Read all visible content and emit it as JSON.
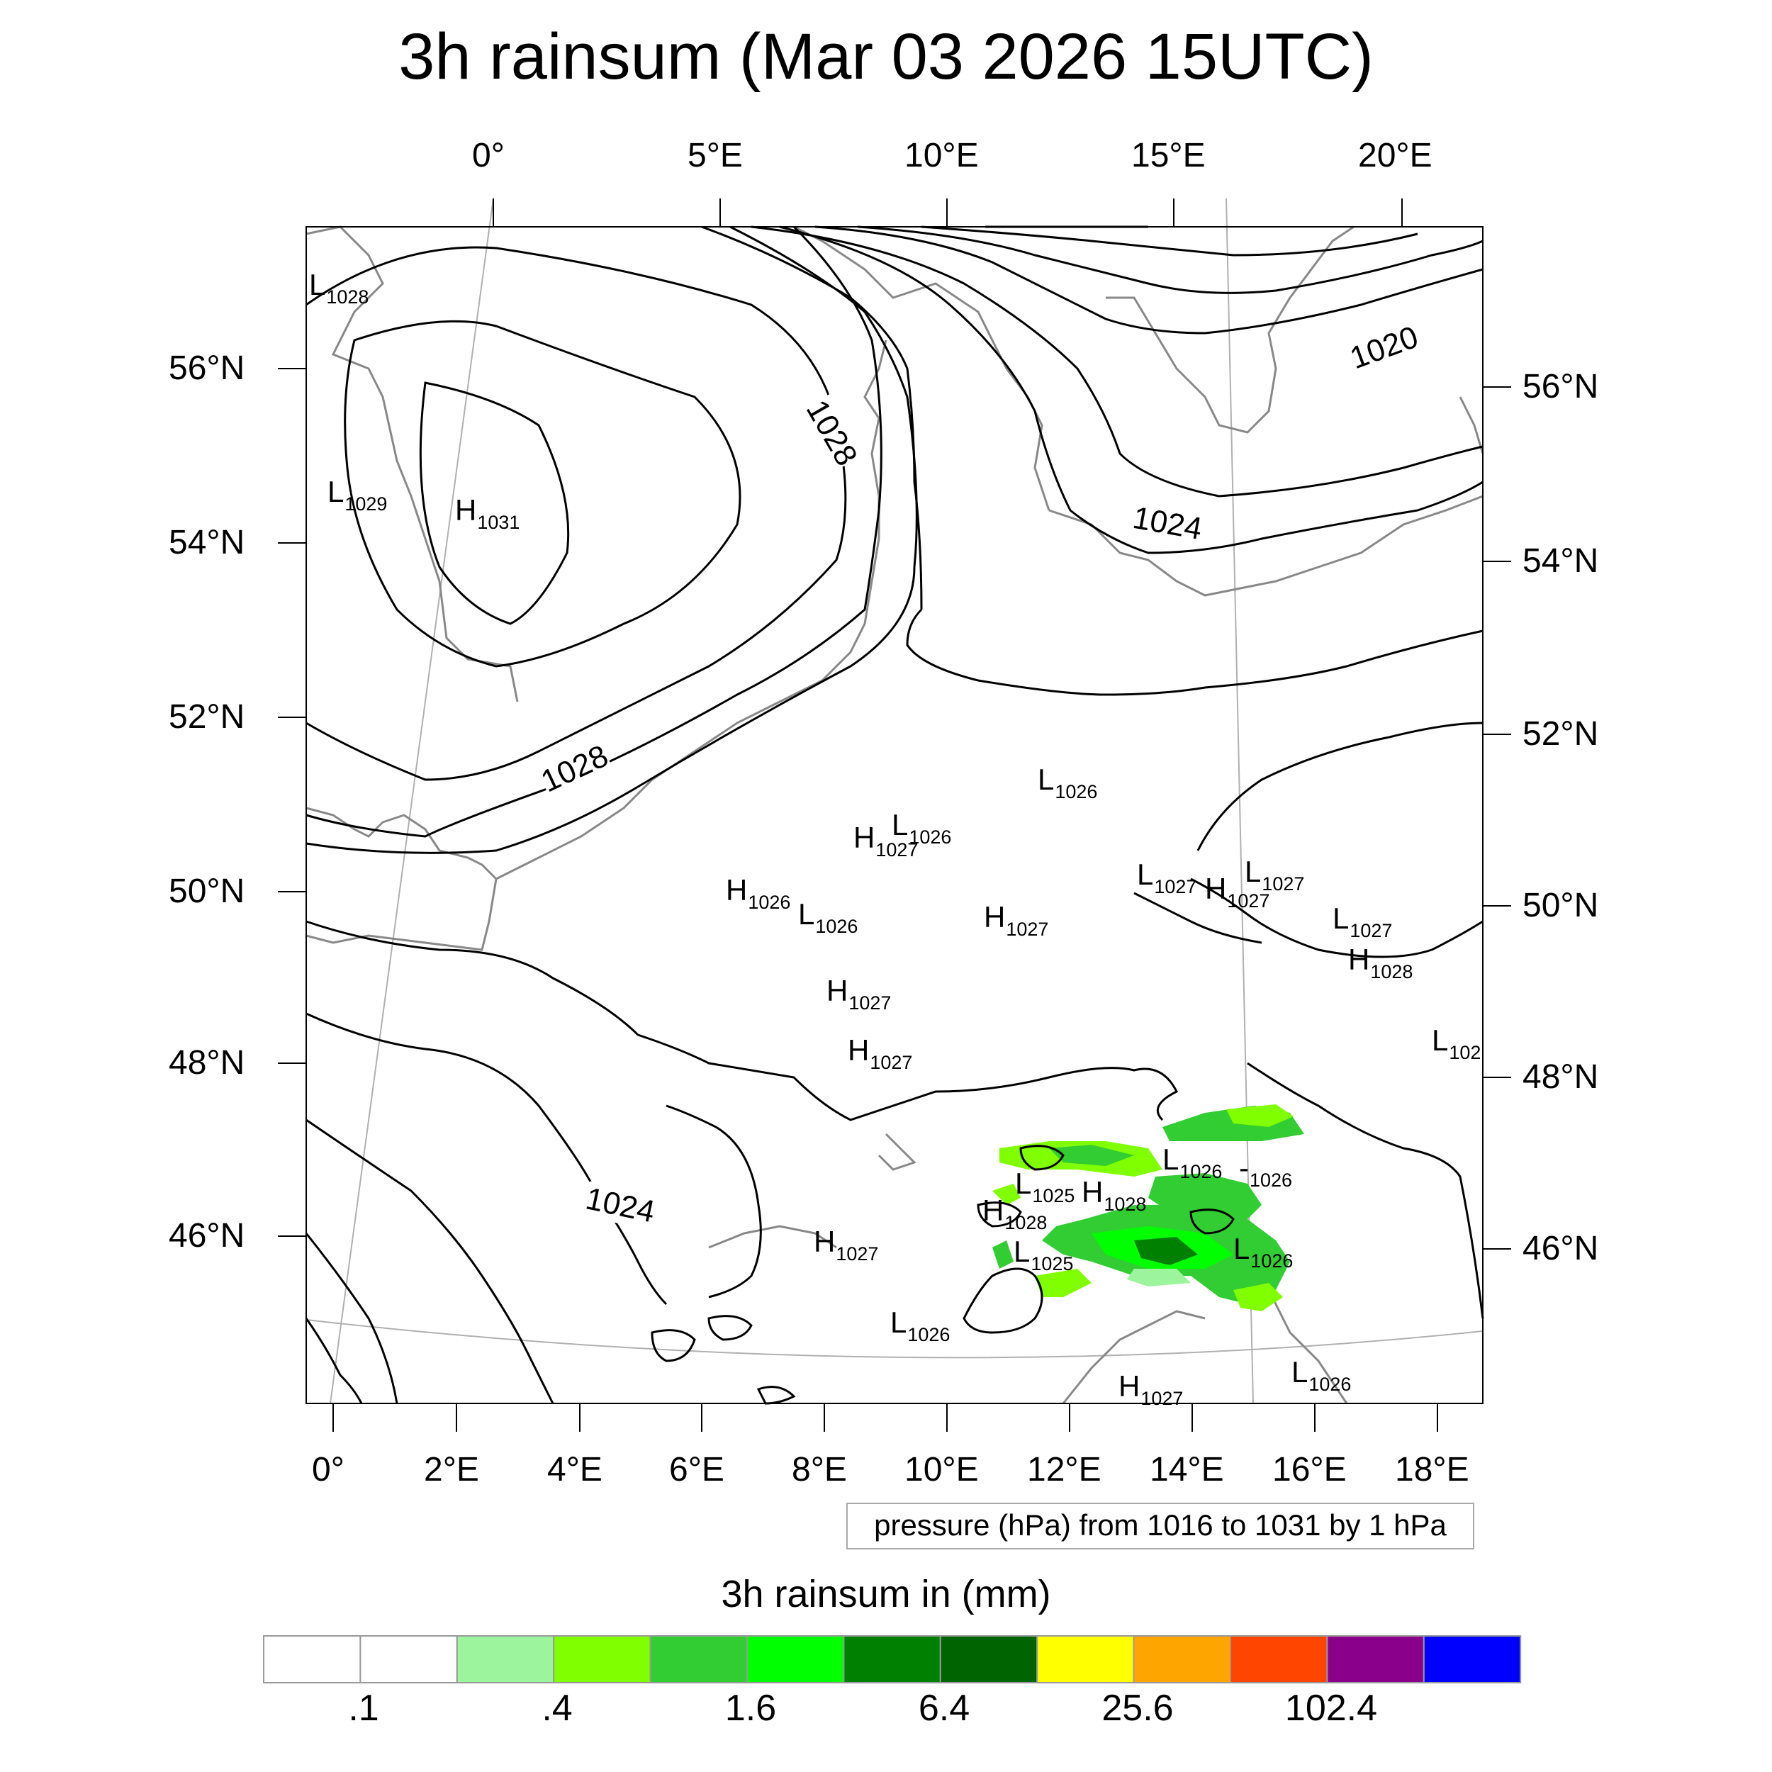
{
  "title": "3h rainsum (Mar 03 2026 15UTC)",
  "top_lon_labels": [
    "0°",
    "5°E",
    "10°E",
    "15°E",
    "20°E"
  ],
  "bottom_lon_labels": [
    "0°",
    "2°E",
    "4°E",
    "6°E",
    "8°E",
    "10°E",
    "12°E",
    "14°E",
    "16°E",
    "18°E"
  ],
  "left_lat_labels": [
    "56°N",
    "54°N",
    "52°N",
    "50°N",
    "48°N",
    "46°N"
  ],
  "right_lat_labels": [
    "56°N",
    "54°N",
    "52°N",
    "50°N",
    "48°N",
    "46°N"
  ],
  "contour_labels": [
    "1020",
    "1024",
    "1028",
    "1028",
    "1024"
  ],
  "pressure_centers": [
    {
      "letter": "L",
      "value": "1028"
    },
    {
      "letter": "L",
      "value": "1029"
    },
    {
      "letter": "H",
      "value": "1031"
    },
    {
      "letter": "L",
      "value": "1026"
    },
    {
      "letter": "H",
      "value": "1027"
    },
    {
      "letter": "L",
      "value": "1026"
    },
    {
      "letter": "H",
      "value": "1026"
    },
    {
      "letter": "L",
      "value": "1026"
    },
    {
      "letter": "H",
      "value": "1027"
    },
    {
      "letter": "L",
      "value": "1027"
    },
    {
      "letter": "H",
      "value": "1027"
    },
    {
      "letter": "L",
      "value": "1027"
    },
    {
      "letter": "L",
      "value": "1027"
    },
    {
      "letter": "H",
      "value": "1028"
    },
    {
      "letter": "H",
      "value": "1027"
    },
    {
      "letter": "H",
      "value": "1027"
    },
    {
      "letter": "L",
      "value": "102"
    },
    {
      "letter": "L",
      "value": "1026"
    },
    {
      "letter": "L",
      "value": "1025"
    },
    {
      "letter": "L",
      "value": "1026"
    },
    {
      "letter": "H",
      "value": "1028"
    },
    {
      "letter": "H",
      "value": "1028"
    },
    {
      "letter": "L",
      "value": "1025"
    },
    {
      "letter": "H",
      "value": "1027"
    },
    {
      "letter": "L",
      "value": "1026"
    },
    {
      "letter": "L",
      "value": "1026"
    },
    {
      "letter": "L",
      "value": "1026"
    },
    {
      "letter": "H",
      "value": "1027"
    }
  ],
  "contour_info": "pressure (hPa) from 1016 to 1031 by 1 hPa",
  "colorbar": {
    "title": "3h rainsum in (mm)",
    "colors": [
      "#ffffff",
      "#ffffff",
      "#9cf59c",
      "#80ff00",
      "#32cd32",
      "#00ff00",
      "#008000",
      "#006400",
      "#ffff00",
      "#ffa500",
      "#ff4500",
      "#8b008b",
      "#0000ff"
    ],
    "labels": [
      ".1",
      ".4",
      "1.6",
      "6.4",
      "25.6",
      "102.4"
    ]
  }
}
